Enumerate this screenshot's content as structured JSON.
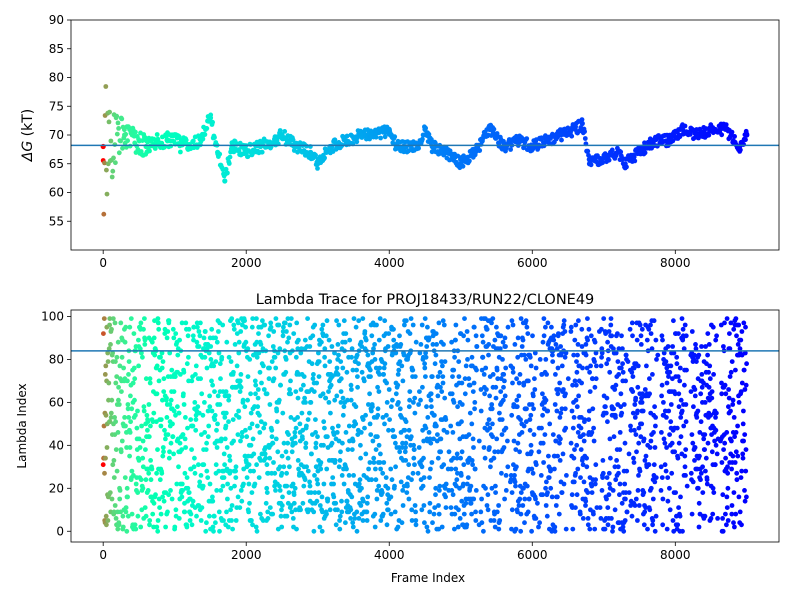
{
  "chart_data": [
    {
      "type": "scatter",
      "title": "",
      "xlabel": "",
      "ylabel_symbol": "ΔG",
      "ylabel_unit": "(kT)",
      "xlim": [
        -450,
        9450
      ],
      "ylim": [
        50,
        90
      ],
      "xticks": [
        0,
        2000,
        4000,
        6000,
        8000
      ],
      "yticks": [
        55,
        60,
        65,
        70,
        75,
        80,
        85,
        90
      ],
      "colormap": "rainbow (red → violet with frame index)",
      "hline": 68.2,
      "hline_color": "#1f77b4",
      "series": [
        {
          "x": [
            0,
            300,
            600,
            900,
            1200,
            1400,
            1500,
            1600,
            1700,
            1800,
            2000,
            2200,
            2400,
            2500,
            2700,
            2900,
            3000,
            3200,
            3400,
            3600,
            3800,
            4000,
            4100,
            4200,
            4400,
            4500,
            4600,
            4800,
            5000,
            5200,
            5300,
            5400,
            5600,
            5800,
            6000,
            6200,
            6400,
            6600,
            6700,
            6800,
            7000,
            7200,
            7300,
            7500,
            7700,
            7900,
            8100,
            8300,
            8500,
            8700,
            8900,
            9000
          ],
          "values": [
            68,
            70,
            68,
            69,
            68,
            70,
            73,
            67,
            62,
            68,
            67,
            68,
            69,
            70,
            68,
            67,
            65,
            68,
            69,
            70,
            70,
            71,
            68,
            68,
            68,
            71,
            68,
            67,
            65,
            67,
            69,
            71,
            68,
            69,
            68,
            69,
            70,
            71,
            72,
            65,
            66,
            67,
            65,
            67,
            69,
            69,
            71,
            70,
            71,
            71,
            68,
            70
          ]
        }
      ]
    },
    {
      "type": "scatter",
      "title": "Lambda Trace for PROJ18433/RUN22/CLONE49",
      "xlabel": "Frame Index",
      "ylabel": "Lambda Index",
      "xlim": [
        -450,
        9450
      ],
      "ylim": [
        -5,
        103
      ],
      "xticks": [
        0,
        2000,
        4000,
        6000,
        8000
      ],
      "yticks": [
        0,
        20,
        40,
        60,
        80,
        100
      ],
      "colormap": "rainbow (red → violet with frame index)",
      "value_range": [
        0,
        99
      ],
      "frame_range": [
        0,
        9000
      ],
      "hline": 84,
      "hline_color": "#1f77b4"
    }
  ]
}
